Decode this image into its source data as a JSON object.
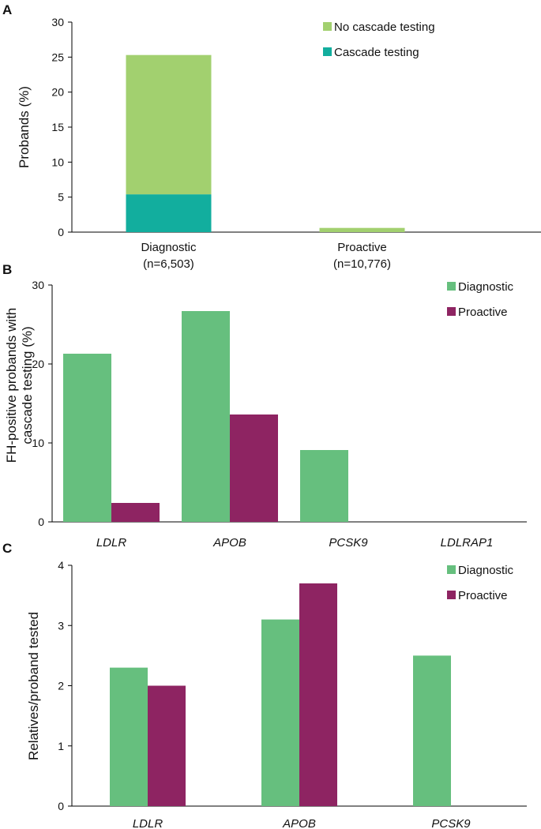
{
  "chart_data": [
    {
      "panel": "A",
      "type": "bar",
      "stacked": true,
      "categories": [
        "Diagnostic",
        "Proactive"
      ],
      "category_sublabels": [
        "(n=6,503)",
        "(n=10,776)"
      ],
      "series": [
        {
          "name": "Cascade testing",
          "values": [
            5.4,
            0
          ],
          "color": "#12ae9e"
        },
        {
          "name": "No cascade testing",
          "values": [
            19.9,
            0.6
          ],
          "color": "#a2d06f"
        }
      ],
      "legend_order": [
        "No cascade testing",
        "Cascade testing"
      ],
      "ylabel": "Probands (%)",
      "ylim": [
        0,
        30
      ],
      "yticks": [
        0,
        5,
        10,
        15,
        20,
        25,
        30
      ],
      "legend": "top-right",
      "grid": false
    },
    {
      "panel": "B",
      "type": "bar",
      "categories": [
        "LDLR",
        "APOB",
        "PCSK9",
        "LDLRAP1"
      ],
      "series": [
        {
          "name": "Diagnostic",
          "values": [
            21.3,
            26.7,
            9.1,
            0
          ],
          "color": "#66bf7e"
        },
        {
          "name": "Proactive",
          "values": [
            2.4,
            13.6,
            0,
            0
          ],
          "color": "#8e2462"
        }
      ],
      "ylabel": "FH-positive probands with cascade testing (%)",
      "ylabel_lines": [
        "FH-positive probands with",
        "cascade testing (%)"
      ],
      "ylim": [
        0,
        30
      ],
      "yticks": [
        0,
        10,
        20,
        30
      ],
      "legend": "top-right",
      "grid": false
    },
    {
      "panel": "C",
      "type": "bar",
      "categories": [
        "LDLR",
        "APOB",
        "PCSK9"
      ],
      "series": [
        {
          "name": "Diagnostic",
          "values": [
            2.3,
            3.1,
            2.5
          ],
          "color": "#66bf7e"
        },
        {
          "name": "Proactive",
          "values": [
            2.0,
            3.7,
            0
          ],
          "color": "#8e2462"
        }
      ],
      "ylabel": "Relatives/proband tested",
      "ylim": [
        0,
        4
      ],
      "yticks": [
        0,
        1,
        2,
        3,
        4
      ],
      "legend": "top-right",
      "grid": false
    }
  ]
}
